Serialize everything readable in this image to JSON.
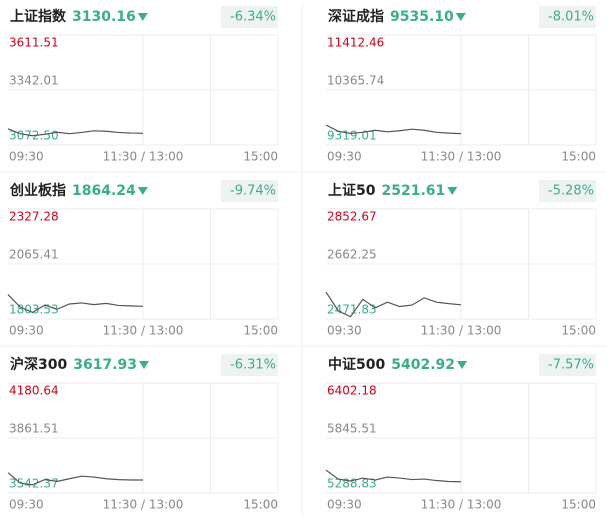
{
  "time_labels": [
    "09:30",
    "11:30 / 13:00",
    "15:00"
  ],
  "panels": [
    {
      "name": "上证指数",
      "price": "3130.16",
      "change": "-6.34%",
      "chart_data": {
        "type": "line",
        "ylim": [
          3072.5,
          3611.51
        ],
        "yticks": [
          {
            "value": 3072.5,
            "label": "3072.50"
          },
          3342.01,
          3611.51
        ],
        "color": "#555555",
        "values": [
          3152,
          3128,
          3118,
          3125,
          3135,
          3128,
          3134,
          3142,
          3140,
          3134,
          3131,
          3130
        ]
      }
    },
    {
      "name": "深证成指",
      "price": "9535.10",
      "change": "-8.01%",
      "chart_data": {
        "type": "line",
        "ylim": [
          9319.01,
          11412.46
        ],
        "yticks": [
          9319.01,
          10365.74,
          11412.46
        ],
        "color": "#555555",
        "values": [
          9700,
          9580,
          9540,
          9560,
          9600,
          9570,
          9590,
          9620,
          9600,
          9560,
          9545,
          9535
        ]
      }
    },
    {
      "name": "创业板指",
      "price": "1864.24",
      "change": "-9.74%",
      "chart_data": {
        "type": "line",
        "ylim": [
          1803.53,
          2327.28
        ],
        "yticks": [
          1803.53,
          2065.41,
          2327.28
        ],
        "color": "#555555",
        "values": [
          1920,
          1860,
          1835,
          1870,
          1850,
          1875,
          1880,
          1872,
          1878,
          1868,
          1866,
          1864
        ]
      }
    },
    {
      "name": "上证50",
      "price": "2521.61",
      "change": "-5.28%",
      "chart_data": {
        "type": "line",
        "ylim": [
          2471.83,
          2852.67
        ],
        "yticks": [
          2471.83,
          2662.25,
          2852.67
        ],
        "color": "#555555",
        "values": [
          2565,
          2500,
          2480,
          2540,
          2510,
          2530,
          2515,
          2520,
          2545,
          2530,
          2525,
          2521
        ]
      }
    },
    {
      "name": "沪深300",
      "price": "3617.93",
      "change": "-6.31%",
      "chart_data": {
        "type": "line",
        "ylim": [
          3542.37,
          4180.64
        ],
        "yticks": [
          3542.37,
          3861.51,
          4180.64
        ],
        "color": "#555555",
        "values": [
          3660,
          3600,
          3590,
          3620,
          3610,
          3625,
          3640,
          3635,
          3625,
          3620,
          3618,
          3618
        ]
      }
    },
    {
      "name": "中证500",
      "price": "5402.92",
      "change": "-7.57%",
      "chart_data": {
        "type": "line",
        "ylim": [
          5288.83,
          6402.18
        ],
        "yticks": [
          5288.83,
          5845.51,
          6402.18
        ],
        "color": "#555555",
        "values": [
          5520,
          5430,
          5410,
          5440,
          5420,
          5450,
          5440,
          5425,
          5430,
          5415,
          5405,
          5403
        ]
      }
    }
  ]
}
